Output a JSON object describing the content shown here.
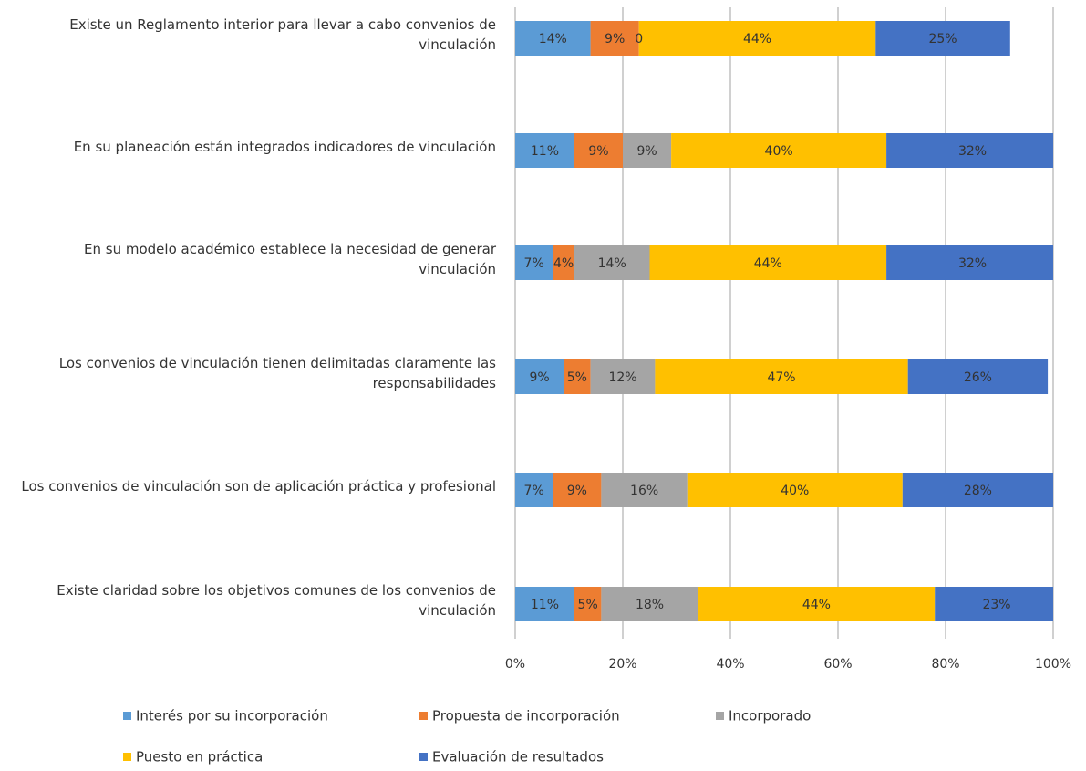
{
  "chart_data": {
    "type": "stacked-barh",
    "categories": [
      "Existe un Reglamento interior para llevar a cabo convenios de vinculación",
      "En su planeación están integrados indicadores de vinculación",
      "En su modelo académico establece la necesidad de generar vinculación",
      "Los convenios de vinculación tienen delimitadas claramente las responsabilidades",
      "Los convenios de vinculación son de aplicación práctica y profesional",
      "Existe claridad sobre los objetivos comunes de los convenios de vinculación"
    ],
    "series": [
      {
        "name": "Interés por su incorporación",
        "color": "#5b9bd5",
        "values": [
          14,
          11,
          7,
          9,
          7,
          11
        ],
        "value_labels": [
          "14%",
          "11%",
          "7%",
          "9%",
          "7%",
          "11%"
        ]
      },
      {
        "name": "Propuesta de incorporación",
        "color": "#ed7d31",
        "values": [
          9,
          9,
          4,
          5,
          9,
          5
        ],
        "value_labels": [
          "9%",
          "9%",
          "4%",
          "5%",
          "9%",
          "5%"
        ]
      },
      {
        "name": "Incorporado",
        "color": "#a5a5a5",
        "values": [
          0,
          9,
          14,
          12,
          16,
          18
        ],
        "value_labels": [
          "0",
          "9%",
          "14%",
          "12%",
          "16%",
          "18%"
        ]
      },
      {
        "name": "Puesto en práctica",
        "color": "#ffc000",
        "values": [
          44,
          40,
          44,
          47,
          40,
          44
        ],
        "value_labels": [
          "44%",
          "40%",
          "44%",
          "47%",
          "40%",
          "44%"
        ]
      },
      {
        "name": "Evaluación de resultados",
        "color": "#4472c4",
        "values": [
          25,
          32,
          32,
          26,
          28,
          23
        ],
        "value_labels": [
          "25%",
          "32%",
          "32%",
          "26%",
          "28%",
          "23%"
        ]
      }
    ],
    "xlim": [
      0,
      100
    ],
    "xticks": [
      {
        "value": 0,
        "label": "0%"
      },
      {
        "value": 20,
        "label": "20%"
      },
      {
        "value": 40,
        "label": "40%"
      },
      {
        "value": 60,
        "label": "60%"
      },
      {
        "value": 80,
        "label": "80%"
      },
      {
        "value": 100,
        "label": "100%"
      }
    ],
    "grid": true,
    "legend": "bottom"
  }
}
